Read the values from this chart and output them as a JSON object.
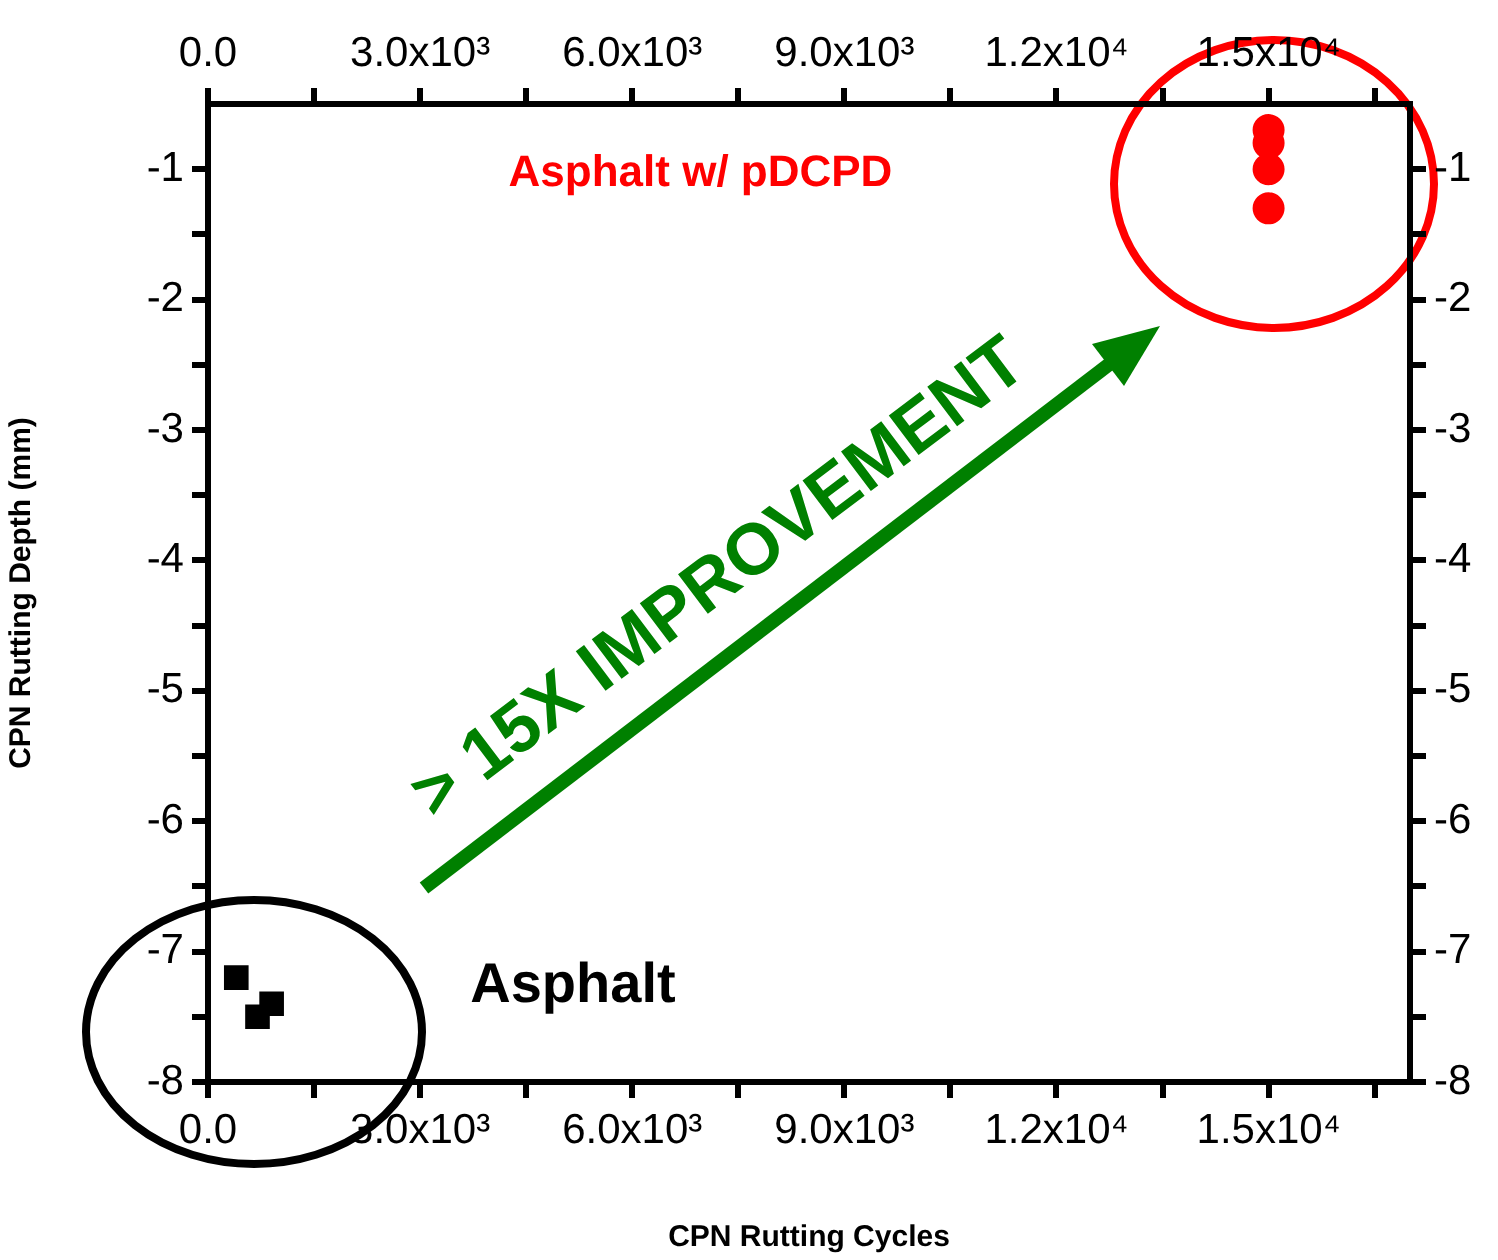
{
  "chart_data": {
    "type": "scatter",
    "xlabel": "CPN Rutting Cycles",
    "ylabel": "CPN Rutting Depth (mm)",
    "series": [
      {
        "name": "Asphalt",
        "color": "#000000",
        "marker": "square",
        "x": [
          400,
          700,
          900
        ],
        "values": [
          -7.2,
          -7.5,
          -7.4
        ]
      },
      {
        "name": "Asphalt w/ pDCPD",
        "color": "#ff0000",
        "marker": "circle",
        "x": [
          15000,
          15000,
          15000,
          15000
        ],
        "values": [
          -0.7,
          -0.8,
          -1.0,
          -1.3
        ]
      }
    ],
    "xlim": [
      0,
      17000
    ],
    "xticks": [
      "0.0",
      {
        "value": 1500,
        "label": null
      },
      {
        "value": 3000,
        "label": "3.0x10³"
      },
      {
        "value": 4500,
        "label": null
      },
      {
        "value": 6000,
        "label": "6.0x10³"
      },
      {
        "value": 7500,
        "label": null
      },
      {
        "value": 9000,
        "label": "9.0x10³"
      },
      {
        "value": 10500,
        "label": null
      },
      {
        "value": 12000,
        "label": "1.2x10⁴"
      },
      {
        "value": 13500,
        "label": null
      },
      {
        "value": 15000,
        "label": "1.5x10⁴"
      },
      {
        "value": 16500,
        "label": null
      }
    ],
    "x2lim": [
      0,
      17000
    ],
    "x2ticks": [
      "0.0",
      {
        "value": 1500,
        "label": null
      },
      {
        "value": 3000,
        "label": "3.0x10³"
      },
      {
        "value": 4500,
        "label": null
      },
      {
        "value": 6000,
        "label": "6.0x10³"
      },
      {
        "value": 7500,
        "label": null
      },
      {
        "value": 9000,
        "label": "9.0x10³"
      },
      {
        "value": 10500,
        "label": null
      },
      {
        "value": 12000,
        "label": "1.2x10⁴"
      },
      {
        "value": 13500,
        "label": null
      },
      {
        "value": 15000,
        "label": "1.5x10⁴"
      },
      {
        "value": 16500,
        "label": null
      }
    ],
    "ylim": [
      -8,
      -0.5
    ],
    "yticks": [
      -8,
      {
        "value": -7.5,
        "label": null
      },
      -7,
      {
        "value": -6.5,
        "label": null
      },
      -6,
      {
        "value": -5.5,
        "label": null
      },
      -5,
      {
        "value": -4.5,
        "label": null
      },
      -4,
      {
        "value": -3.5,
        "label": null
      },
      -3,
      {
        "value": -2.5,
        "label": null
      },
      -2,
      {
        "value": -1.5,
        "label": null
      },
      -1
    ],
    "y2lim": [
      -8,
      -0.5
    ],
    "y2ticks": [
      -8,
      {
        "value": -7.5,
        "label": null
      },
      -7,
      {
        "value": -6.5,
        "label": null
      },
      -6,
      {
        "value": -5.5,
        "label": null
      },
      -5,
      {
        "value": -4.5,
        "label": null
      },
      -4,
      {
        "value": -3.5,
        "label": null
      },
      -3,
      {
        "value": -2.5,
        "label": null
      },
      -2,
      {
        "value": -1.5,
        "label": null
      },
      -1
    ],
    "grid": false,
    "legend": false,
    "annotations": [
      "> 15X IMPROVEMENT"
    ]
  }
}
